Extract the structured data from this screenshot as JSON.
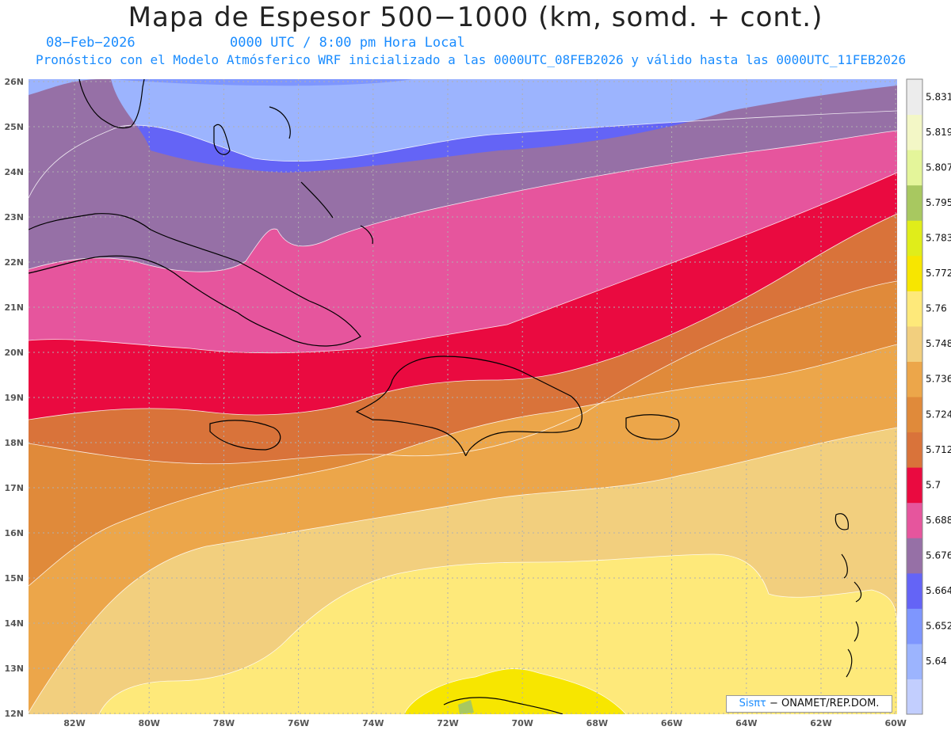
{
  "header": {
    "title": "Mapa de Espesor 500−1000 (km, somd. + cont.)",
    "date": "08−Feb−2026",
    "time": "0000 UTC / 8:00 pm Hora Local",
    "description": "Pronóstico con el Modelo Atmósferico WRF inicializado a las 0000UTC_08FEB2026 y válido hasta las  0000UTC_11FEB2026"
  },
  "axes": {
    "lat_labels": [
      "26N",
      "25N",
      "24N",
      "23N",
      "22N",
      "21N",
      "20N",
      "19N",
      "18N",
      "17N",
      "16N",
      "15N",
      "14N",
      "13N",
      "12N"
    ],
    "lon_labels": [
      "82W",
      "80W",
      "78W",
      "76W",
      "74W",
      "72W",
      "70W",
      "68W",
      "66W",
      "64W",
      "62W",
      "60W"
    ]
  },
  "colorbar": {
    "labels": [
      "5.831",
      "5.819",
      "5.807",
      "5.795",
      "5.783",
      "5.772",
      "5.76",
      "5.748",
      "5.736",
      "5.724",
      "5.712",
      "5.7",
      "5.688",
      "5.676",
      "5.664",
      "5.652",
      "5.64"
    ],
    "colors": [
      "#ececec",
      "#f3f7c6",
      "#e4f59a",
      "#a8c860",
      "#e0ed1a",
      "#f7e600",
      "#fee97a",
      "#f2cf7e",
      "#eca64a",
      "#e08a3a",
      "#d9733a",
      "#ea0a40",
      "#e6559d",
      "#9670a6",
      "#6464f6",
      "#7e96fe",
      "#9cb4fe",
      "#c2cefe"
    ]
  },
  "credit": {
    "brand": "Sisπτ",
    "text": " − ONAMET/REP.DOM."
  }
}
